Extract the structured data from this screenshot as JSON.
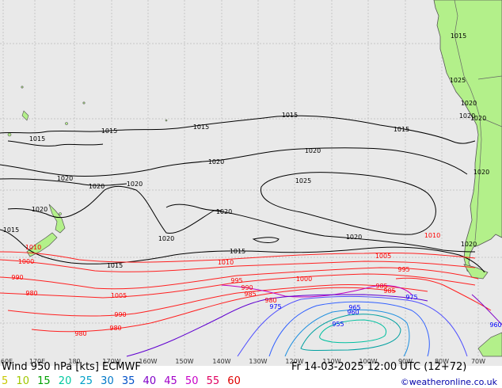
{
  "title": "Wind 950 hPa [kts] ECMWF",
  "valid_time": "Fr 14-03-2025 12:00 UTC (12+72)",
  "credit": "©weatheronline.co.uk",
  "legend": {
    "items": [
      {
        "label": "5",
        "color": "#c8c800"
      },
      {
        "label": "10",
        "color": "#a0c800"
      },
      {
        "label": "15",
        "color": "#00a000"
      },
      {
        "label": "20",
        "color": "#00c8a0"
      },
      {
        "label": "25",
        "color": "#00a0c8"
      },
      {
        "label": "30",
        "color": "#0078c8"
      },
      {
        "label": "35",
        "color": "#0050c8"
      },
      {
        "label": "40",
        "color": "#8000c8"
      },
      {
        "label": "45",
        "color": "#a000c8"
      },
      {
        "label": "50",
        "color": "#c800c8"
      },
      {
        "label": "55",
        "color": "#e00060"
      },
      {
        "label": "60",
        "color": "#e00000"
      }
    ]
  },
  "longitude_ticks": [
    "160E",
    "170E",
    "180",
    "170W",
    "160W",
    "150W",
    "140W",
    "130W",
    "120W",
    "110W",
    "100W",
    "90W",
    "80W",
    "70W"
  ],
  "isobar_labels": [
    {
      "text": "1015",
      "color": "#000000"
    },
    {
      "text": "1015",
      "color": "#000000"
    },
    {
      "text": "1015",
      "color": "#000000"
    },
    {
      "text": "1015",
      "color": "#000000"
    },
    {
      "text": "1015",
      "color": "#000000"
    },
    {
      "text": "1015",
      "color": "#000000"
    },
    {
      "text": "1015",
      "color": "#000000"
    },
    {
      "text": "1015",
      "color": "#000000"
    },
    {
      "text": "1015",
      "color": "#000000"
    },
    {
      "text": "1020",
      "color": "#000000"
    },
    {
      "text": "1020",
      "color": "#000000"
    },
    {
      "text": "1020",
      "color": "#000000"
    },
    {
      "text": "1020",
      "color": "#000000"
    },
    {
      "text": "1020",
      "color": "#000000"
    },
    {
      "text": "1020",
      "color": "#000000"
    },
    {
      "text": "1020",
      "color": "#000000"
    },
    {
      "text": "1020",
      "color": "#000000"
    },
    {
      "text": "1020",
      "color": "#000000"
    },
    {
      "text": "1020",
      "color": "#000000"
    },
    {
      "text": "1020",
      "color": "#000000"
    },
    {
      "text": "1020",
      "color": "#000000"
    },
    {
      "text": "1020",
      "color": "#000000"
    },
    {
      "text": "1020",
      "color": "#000000"
    },
    {
      "text": "1025",
      "color": "#000000"
    },
    {
      "text": "1025",
      "color": "#000000"
    },
    {
      "text": "1010",
      "color": "#ff0000"
    },
    {
      "text": "1010",
      "color": "#ff0000"
    },
    {
      "text": "1010",
      "color": "#ff0000"
    },
    {
      "text": "1005",
      "color": "#ff0000"
    },
    {
      "text": "1005",
      "color": "#ff0000"
    },
    {
      "text": "1000",
      "color": "#ff0000"
    },
    {
      "text": "1000",
      "color": "#ff0000"
    },
    {
      "text": "995",
      "color": "#ff0000"
    },
    {
      "text": "995",
      "color": "#ff0000"
    },
    {
      "text": "990",
      "color": "#ff0000"
    },
    {
      "text": "990",
      "color": "#ff0000"
    },
    {
      "text": "990",
      "color": "#ff0000"
    },
    {
      "text": "985",
      "color": "#ff0000"
    },
    {
      "text": "985",
      "color": "#ff0000"
    },
    {
      "text": "985",
      "color": "#ff0000"
    },
    {
      "text": "980",
      "color": "#ff0000"
    },
    {
      "text": "980",
      "color": "#ff0000"
    },
    {
      "text": "980",
      "color": "#ff0000"
    },
    {
      "text": "980",
      "color": "#ff0000"
    },
    {
      "text": "975",
      "color": "#0000ff"
    },
    {
      "text": "975",
      "color": "#0000ff"
    },
    {
      "text": "965",
      "color": "#0000ff"
    },
    {
      "text": "960",
      "color": "#0000ff"
    },
    {
      "text": "960",
      "color": "#0000ff"
    },
    {
      "text": "955",
      "color": "#0000ff"
    }
  ]
}
